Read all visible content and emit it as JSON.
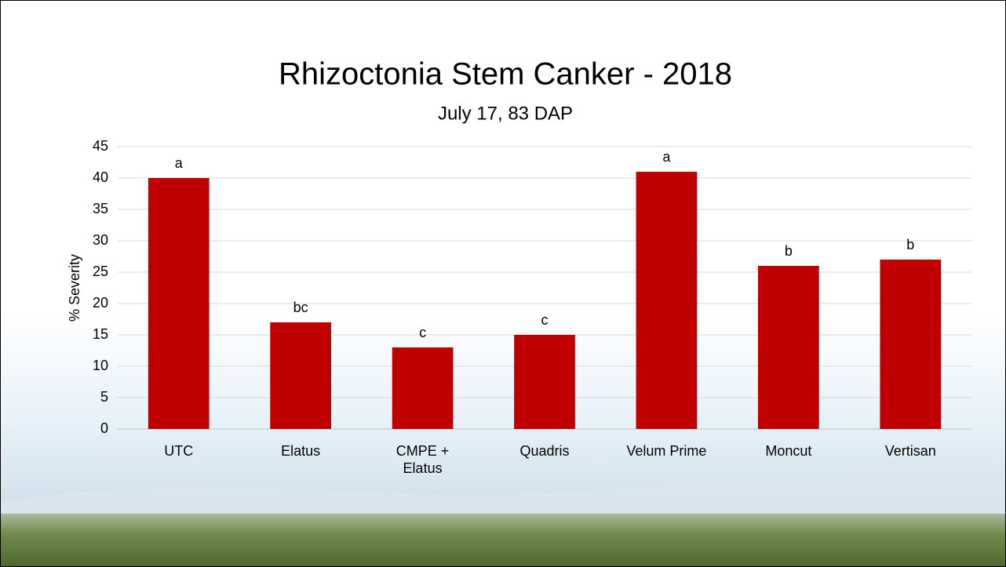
{
  "chart_data": {
    "type": "bar",
    "title": "Rhizoctonia Stem Canker - 2018",
    "subtitle": "July 17, 83 DAP",
    "y_label": "% Severity",
    "categories": [
      "UTC",
      "Elatus",
      "CMPE + Elatus",
      "Quadris",
      "Velum Prime",
      "Moncut",
      "Vertisan"
    ],
    "values": [
      40,
      17,
      13,
      15,
      41,
      26,
      27
    ],
    "bar_labels": [
      "a",
      "bc",
      "c",
      "c",
      "a",
      "b",
      "b"
    ],
    "color": "#c00000",
    "ylim": [
      0,
      45
    ],
    "yticks": [
      0,
      5,
      10,
      15,
      20,
      25,
      30,
      35,
      40,
      45
    ],
    "grid": true
  }
}
